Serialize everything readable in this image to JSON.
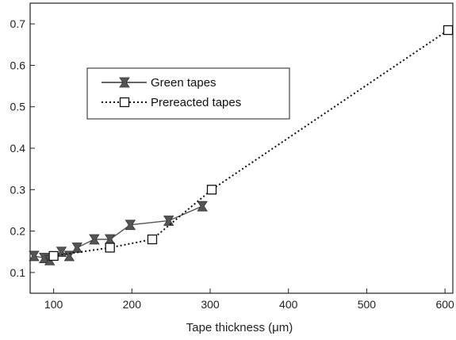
{
  "chart_data": {
    "type": "line",
    "title": "",
    "xlabel": "Tape thickness (μm)",
    "ylabel": "",
    "xlim": [
      70,
      610
    ],
    "ylim": [
      0.05,
      0.75
    ],
    "x_ticks": [
      100,
      200,
      300,
      400,
      500,
      600
    ],
    "x_tick_labels": [
      "100",
      "200",
      "300",
      "400",
      "500",
      "600"
    ],
    "y_ticks": [
      0.1,
      0.2,
      0.3,
      0.4,
      0.5,
      0.6,
      0.7
    ],
    "y_tick_labels": [
      "0.1",
      "0.2",
      "0.3",
      "0.4",
      "0.5",
      "0.6",
      "0.7"
    ],
    "grid": false,
    "legend_position": "upper-left",
    "series": [
      {
        "name": "Green tapes",
        "line": "solid",
        "marker": "filled-bowtie-square",
        "color": "#555555",
        "x": [
          75,
          88,
          95,
          110,
          120,
          130,
          152,
          172,
          198,
          247,
          290
        ],
        "y": [
          0.14,
          0.135,
          0.13,
          0.15,
          0.14,
          0.16,
          0.18,
          0.18,
          0.215,
          0.225,
          0.26
        ]
      },
      {
        "name": "Prereacted tapes",
        "line": "dotted",
        "marker": "open-square",
        "color": "#111111",
        "x": [
          100,
          172,
          226,
          302,
          604
        ],
        "y": [
          0.14,
          0.16,
          0.18,
          0.3,
          0.685
        ]
      }
    ]
  }
}
